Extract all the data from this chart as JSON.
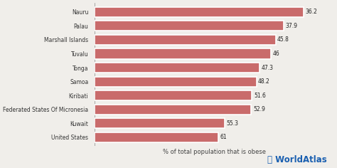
{
  "countries": [
    "United States",
    "Kuwait",
    "Federated States Of Micronesia",
    "Kiribati",
    "Samoa",
    "Tonga",
    "Tuvalu",
    "Marshall Islands",
    "Palau",
    "Nauru"
  ],
  "values": [
    36.2,
    37.9,
    45.8,
    46,
    47.3,
    48.2,
    51.6,
    52.9,
    55.3,
    61
  ],
  "bar_color": "#c96b6b",
  "background_color": "#f0eeea",
  "xlabel": "% of total population that is obese",
  "xlabel_fontsize": 6.0,
  "value_fontsize": 5.5,
  "label_fontsize": 5.5,
  "xlim": [
    0,
    70
  ],
  "bar_height": 0.72,
  "watermark_text": "WorldAtlas",
  "watermark_color": "#1a5fb0",
  "watermark_fontsize": 8.5,
  "value_labels": [
    "61",
    "55.3",
    "52.9",
    "51.6",
    "48.2",
    "47.3",
    "46",
    "45.8",
    "37.9",
    "36.2"
  ]
}
